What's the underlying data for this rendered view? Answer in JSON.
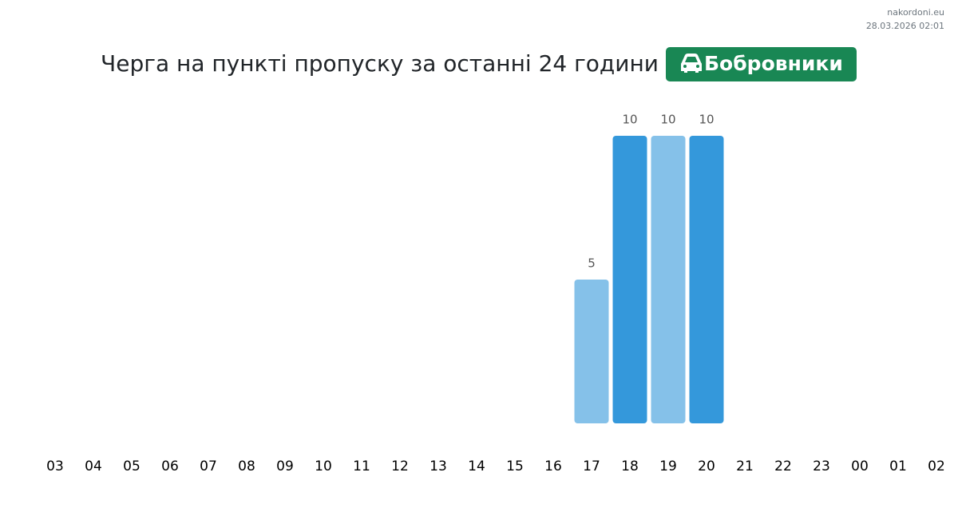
{
  "site": "nakordoni.eu",
  "timestamp": "28.03.2026 02:01",
  "chart_data": {
    "type": "bar",
    "title": "Черга на пункті пропуску за останні 24 години",
    "badge": "Бобровники",
    "categories": [
      "03",
      "04",
      "05",
      "06",
      "07",
      "08",
      "09",
      "10",
      "11",
      "12",
      "13",
      "14",
      "15",
      "16",
      "17",
      "18",
      "19",
      "20",
      "21",
      "22",
      "23",
      "00",
      "01",
      "02"
    ],
    "values": [
      null,
      null,
      null,
      null,
      null,
      null,
      null,
      null,
      null,
      null,
      null,
      null,
      null,
      null,
      5,
      10,
      10,
      10,
      null,
      null,
      null,
      null,
      null,
      null
    ],
    "colors": [
      "#85c1e9",
      "#3498db"
    ],
    "badge_color": "#198754"
  }
}
